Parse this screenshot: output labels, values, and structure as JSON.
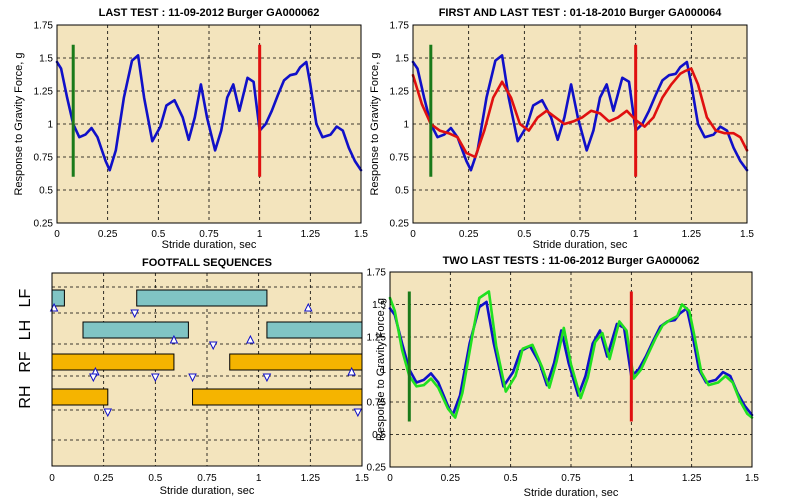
{
  "chart_data": [
    {
      "type": "line",
      "title": "LAST TEST : 11-09-2012 Burger GA000062",
      "xlabel": "Stride duration, sec",
      "ylabel": "Response to Gravity Force, g",
      "xlim": [
        0,
        1.5
      ],
      "ylim": [
        0.25,
        1.75
      ],
      "xticks": [
        "0",
        "0.25",
        "0.5",
        "0.75",
        "1",
        "1.25",
        "1.5"
      ],
      "yticks": [
        "0.25",
        "0.5",
        "0.75",
        "1",
        "1.25",
        "1.5",
        "1.75"
      ],
      "markers": [
        {
          "x": 0.08,
          "y0": 0.6,
          "y1": 1.6,
          "color": "#1a7a1a"
        },
        {
          "x": 1.0,
          "y0": 0.6,
          "y1": 1.6,
          "color": "#e01010"
        }
      ],
      "series": [
        {
          "color": "#1010c8",
          "x": [
            0,
            0.02,
            0.05,
            0.08,
            0.11,
            0.14,
            0.17,
            0.2,
            0.24,
            0.26,
            0.29,
            0.33,
            0.37,
            0.4,
            0.43,
            0.47,
            0.51,
            0.54,
            0.58,
            0.62,
            0.65,
            0.68,
            0.71,
            0.74,
            0.78,
            0.81,
            0.84,
            0.87,
            0.9,
            0.94,
            0.97,
            1.0,
            1.03,
            1.06,
            1.09,
            1.12,
            1.15,
            1.18,
            1.2,
            1.23,
            1.25,
            1.28,
            1.31,
            1.35,
            1.38,
            1.41,
            1.44,
            1.47,
            1.5
          ],
          "y": [
            1.47,
            1.42,
            1.2,
            1.0,
            0.9,
            0.92,
            0.97,
            0.9,
            0.72,
            0.65,
            0.8,
            1.2,
            1.48,
            1.52,
            1.2,
            0.87,
            0.98,
            1.14,
            1.18,
            1.05,
            0.88,
            1.05,
            1.3,
            1.05,
            0.8,
            0.95,
            1.2,
            1.3,
            1.1,
            1.35,
            1.32,
            0.95,
            1.0,
            1.1,
            1.22,
            1.33,
            1.37,
            1.38,
            1.43,
            1.47,
            1.3,
            1.0,
            0.9,
            0.92,
            0.98,
            0.95,
            0.82,
            0.72,
            0.65
          ]
        }
      ]
    },
    {
      "type": "line",
      "title": "FIRST AND LAST TEST : 01-18-2010 Burger GA000064",
      "xlabel": "Stride duration, sec",
      "ylabel": "Response to Gravity Force, g",
      "xlim": [
        0,
        1.5
      ],
      "ylim": [
        0.25,
        1.75
      ],
      "xticks": [
        "0",
        "0.25",
        "0.5",
        "0.75",
        "1",
        "1.25",
        "1.5"
      ],
      "yticks": [
        "0.25",
        "0.5",
        "0.75",
        "1",
        "1.25",
        "1.5",
        "1.75"
      ],
      "markers": [
        {
          "x": 0.08,
          "y0": 0.6,
          "y1": 1.6,
          "color": "#1a7a1a"
        },
        {
          "x": 1.0,
          "y0": 0.6,
          "y1": 1.6,
          "color": "#e01010"
        }
      ],
      "series": [
        {
          "color": "#1010c8",
          "x": [
            0,
            0.02,
            0.05,
            0.08,
            0.11,
            0.14,
            0.17,
            0.2,
            0.24,
            0.26,
            0.29,
            0.33,
            0.37,
            0.4,
            0.43,
            0.47,
            0.51,
            0.54,
            0.58,
            0.62,
            0.65,
            0.68,
            0.71,
            0.74,
            0.78,
            0.81,
            0.84,
            0.87,
            0.9,
            0.94,
            0.97,
            1.0,
            1.03,
            1.06,
            1.09,
            1.12,
            1.15,
            1.18,
            1.2,
            1.23,
            1.25,
            1.28,
            1.31,
            1.35,
            1.38,
            1.41,
            1.44,
            1.47,
            1.5
          ],
          "y": [
            1.47,
            1.42,
            1.2,
            1.0,
            0.9,
            0.92,
            0.97,
            0.9,
            0.72,
            0.65,
            0.8,
            1.2,
            1.48,
            1.52,
            1.2,
            0.87,
            0.98,
            1.14,
            1.18,
            1.05,
            0.88,
            1.05,
            1.3,
            1.05,
            0.8,
            0.95,
            1.2,
            1.3,
            1.1,
            1.35,
            1.32,
            0.95,
            1.0,
            1.1,
            1.22,
            1.33,
            1.37,
            1.38,
            1.43,
            1.47,
            1.3,
            1.0,
            0.9,
            0.92,
            0.98,
            0.95,
            0.82,
            0.72,
            0.65
          ]
        },
        {
          "color": "#e01010",
          "x": [
            0,
            0.04,
            0.08,
            0.12,
            0.16,
            0.2,
            0.24,
            0.28,
            0.32,
            0.36,
            0.4,
            0.44,
            0.48,
            0.52,
            0.56,
            0.6,
            0.64,
            0.68,
            0.72,
            0.76,
            0.8,
            0.84,
            0.88,
            0.92,
            0.96,
            1.0,
            1.04,
            1.08,
            1.12,
            1.16,
            1.2,
            1.22,
            1.25,
            1.28,
            1.32,
            1.36,
            1.4,
            1.44,
            1.47,
            1.5
          ],
          "y": [
            1.37,
            1.15,
            1.0,
            0.95,
            0.93,
            0.9,
            0.78,
            0.75,
            0.95,
            1.2,
            1.32,
            1.2,
            1.0,
            0.95,
            1.05,
            1.1,
            1.05,
            1.0,
            1.02,
            1.05,
            1.1,
            1.08,
            1.02,
            1.05,
            1.1,
            1.03,
            0.98,
            1.05,
            1.2,
            1.3,
            1.38,
            1.4,
            1.42,
            1.3,
            1.05,
            0.95,
            0.93,
            0.93,
            0.9,
            0.8
          ]
        }
      ]
    },
    {
      "type": "bar",
      "subtype": "gait-footfall-timeline",
      "title": "FOOTFALL SEQUENCES",
      "xlabel": "Stride duration, sec",
      "xlim": [
        0,
        1.5
      ],
      "xticks": [
        "0",
        "0.25",
        "0.5",
        "0.75",
        "1",
        "1.25",
        "1.5"
      ],
      "rows": [
        "LF",
        "LH",
        "RF",
        "RH"
      ],
      "bars": [
        {
          "row": "LF",
          "x0": 0,
          "x1": 0.06,
          "color": "#80c4c4"
        },
        {
          "row": "LF",
          "x0": 0.41,
          "x1": 1.04,
          "color": "#80c4c4"
        },
        {
          "row": "LH",
          "x0": 0.15,
          "x1": 0.66,
          "color": "#80c4c4"
        },
        {
          "row": "LH",
          "x0": 1.04,
          "x1": 1.5,
          "color": "#80c4c4"
        },
        {
          "row": "RF",
          "x0": 0,
          "x1": 0.59,
          "color": "#f5b400"
        },
        {
          "row": "RF",
          "x0": 0.86,
          "x1": 1.5,
          "color": "#f5b400"
        },
        {
          "row": "RH",
          "x0": 0,
          "x1": 0.27,
          "color": "#f5b400"
        },
        {
          "row": "RH",
          "x0": 0.68,
          "x1": 1.5,
          "color": "#f5b400"
        }
      ],
      "events_up": [
        {
          "row": "LF",
          "x": 0.01
        },
        {
          "row": "LF",
          "x": 1.24
        },
        {
          "row": "LH",
          "x": 0.59
        },
        {
          "row": "LH",
          "x": 0.96
        },
        {
          "row": "RF",
          "x": 0.21
        },
        {
          "row": "RF",
          "x": 1.45
        }
      ],
      "events_down": [
        {
          "row": "LF",
          "x": 0.4
        },
        {
          "row": "LH",
          "x": 0.78
        },
        {
          "row": "RF",
          "x": 0.2
        },
        {
          "row": "RF",
          "x": 0.5
        },
        {
          "row": "RF",
          "x": 0.68
        },
        {
          "row": "RF",
          "x": 1.04
        },
        {
          "row": "RH",
          "x": 0.27
        },
        {
          "row": "RH",
          "x": 1.48
        }
      ],
      "colors": {
        "lf_lh": "#80c4c4",
        "rf_rh": "#f5b400",
        "event": "#1010c8"
      }
    },
    {
      "type": "line",
      "title": "TWO LAST TESTS : 11-06-2012 Burger GA000062",
      "xlabel": "Stride duration, sec",
      "ylabel": "Response to Gravity Force, g",
      "xlim": [
        0,
        1.5
      ],
      "ylim": [
        0.25,
        1.75
      ],
      "xticks": [
        "0",
        "0.25",
        "0.5",
        "0.75",
        "1",
        "1.25",
        "1.5"
      ],
      "yticks": [
        "0.25",
        "0.5",
        "0.75",
        "1",
        "1.25",
        "1.5",
        "1.75"
      ],
      "markers": [
        {
          "x": 0.08,
          "y0": 0.6,
          "y1": 1.6,
          "color": "#1a7a1a"
        },
        {
          "x": 1.0,
          "y0": 0.6,
          "y1": 1.6,
          "color": "#e01010"
        }
      ],
      "series": [
        {
          "color": "#1010c8",
          "x": [
            0,
            0.02,
            0.05,
            0.08,
            0.11,
            0.14,
            0.17,
            0.2,
            0.24,
            0.26,
            0.29,
            0.33,
            0.37,
            0.4,
            0.43,
            0.47,
            0.51,
            0.54,
            0.58,
            0.62,
            0.65,
            0.68,
            0.71,
            0.74,
            0.78,
            0.81,
            0.84,
            0.87,
            0.9,
            0.94,
            0.97,
            1.0,
            1.03,
            1.06,
            1.09,
            1.12,
            1.15,
            1.18,
            1.2,
            1.23,
            1.25,
            1.28,
            1.31,
            1.35,
            1.38,
            1.41,
            1.44,
            1.47,
            1.5
          ],
          "y": [
            1.47,
            1.42,
            1.2,
            1.0,
            0.9,
            0.92,
            0.97,
            0.9,
            0.72,
            0.65,
            0.8,
            1.2,
            1.48,
            1.52,
            1.2,
            0.87,
            0.98,
            1.14,
            1.18,
            1.05,
            0.88,
            1.05,
            1.3,
            1.05,
            0.8,
            0.95,
            1.2,
            1.3,
            1.1,
            1.35,
            1.32,
            0.95,
            1.0,
            1.1,
            1.22,
            1.33,
            1.37,
            1.38,
            1.43,
            1.47,
            1.3,
            1.0,
            0.9,
            0.92,
            0.98,
            0.95,
            0.82,
            0.72,
            0.65
          ]
        },
        {
          "color": "#20e020",
          "x": [
            0,
            0.02,
            0.05,
            0.08,
            0.11,
            0.14,
            0.17,
            0.2,
            0.24,
            0.27,
            0.3,
            0.34,
            0.37,
            0.41,
            0.44,
            0.48,
            0.52,
            0.55,
            0.59,
            0.63,
            0.66,
            0.69,
            0.72,
            0.75,
            0.79,
            0.82,
            0.85,
            0.88,
            0.91,
            0.95,
            0.98,
            1.01,
            1.04,
            1.07,
            1.1,
            1.13,
            1.16,
            1.19,
            1.21,
            1.24,
            1.26,
            1.29,
            1.32,
            1.36,
            1.39,
            1.42,
            1.45,
            1.48,
            1.5
          ],
          "y": [
            1.55,
            1.45,
            1.15,
            0.95,
            0.87,
            0.88,
            0.93,
            0.86,
            0.7,
            0.63,
            0.82,
            1.25,
            1.55,
            1.6,
            1.18,
            0.83,
            0.95,
            1.16,
            1.19,
            1.02,
            0.86,
            1.06,
            1.32,
            1.04,
            0.78,
            0.94,
            1.21,
            1.28,
            1.08,
            1.37,
            1.3,
            0.93,
            1.0,
            1.12,
            1.24,
            1.34,
            1.38,
            1.41,
            1.5,
            1.45,
            1.27,
            0.98,
            0.88,
            0.9,
            0.95,
            0.9,
            0.76,
            0.66,
            0.63
          ]
        }
      ]
    }
  ]
}
